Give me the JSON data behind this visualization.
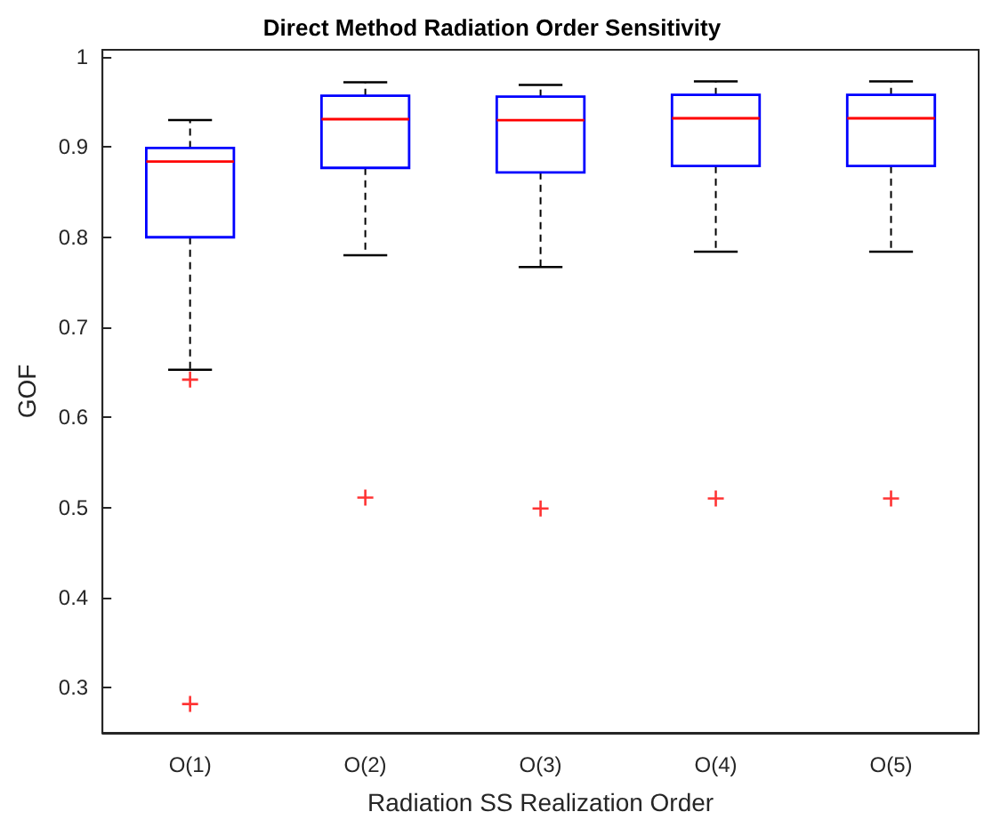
{
  "chart_data": {
    "type": "box",
    "title": "Direct Method Radiation Order Sensitivity",
    "xlabel": "Radiation SS Realization Order",
    "ylabel": "GOF",
    "categories": [
      "O(1)",
      "O(2)",
      "O(3)",
      "O(4)",
      "O(5)"
    ],
    "color": "#0000ff",
    "boxes": [
      {
        "low": 0.653,
        "q1": 0.8,
        "median": 0.884,
        "q3": 0.899,
        "high": 0.93,
        "outliers": [
          0.642,
          0.282
        ]
      },
      {
        "low": 0.78,
        "q1": 0.877,
        "median": 0.931,
        "q3": 0.957,
        "high": 0.972,
        "outliers": [
          0.511
        ]
      },
      {
        "low": 0.767,
        "q1": 0.872,
        "median": 0.93,
        "q3": 0.956,
        "high": 0.969,
        "outliers": [
          0.499
        ]
      },
      {
        "low": 0.784,
        "q1": 0.879,
        "median": 0.932,
        "q3": 0.958,
        "high": 0.973,
        "outliers": [
          0.51
        ]
      },
      {
        "low": 0.784,
        "q1": 0.879,
        "median": 0.932,
        "q3": 0.958,
        "high": 0.973,
        "outliers": [
          0.51
        ]
      }
    ],
    "ylim": [
      0.25,
      1.008
    ],
    "yticks": [
      0.3,
      0.4,
      0.5,
      0.6,
      0.7,
      0.8,
      0.9,
      1
    ],
    "marker": "cross",
    "grid": false
  }
}
